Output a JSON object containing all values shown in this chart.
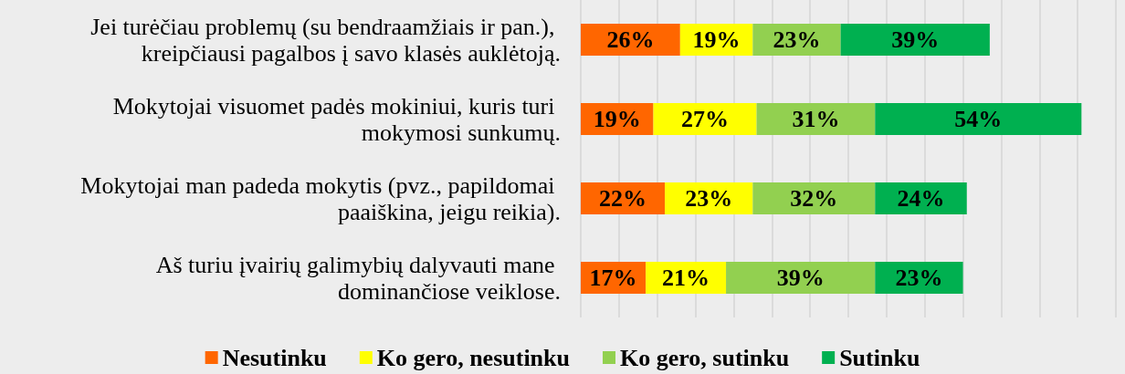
{
  "chart_data": {
    "type": "bar",
    "orientation": "horizontal",
    "stacked": true,
    "categories": [
      "Jei turėčiau problemų (su bendraamžiais ir pan.), kreipčiausi pagalbos į savo klasės auklėtoją.",
      "Mokytojai visuomet padės mokiniui, kuris turi mokymosi sunkumų.",
      "Mokytojai man padeda mokytis (pvz., papildomai paaiškina, jeigu reikia).",
      "Aš turiu įvairių galimybių dalyvauti mane dominančiose veiklose."
    ],
    "series": [
      {
        "name": "Nesutinku",
        "color": "#ff6600",
        "values": [
          26,
          19,
          22,
          17
        ],
        "value_labels": [
          "26%",
          "19%",
          "22%",
          "17%"
        ]
      },
      {
        "name": "Ko gero, nesutinku",
        "color": "#ffff00",
        "values": [
          19,
          27,
          23,
          21
        ],
        "value_labels": [
          "19%",
          "27%",
          "23%",
          "21%"
        ]
      },
      {
        "name": "Ko gero, sutinku",
        "color": "#92d050",
        "values": [
          23,
          31,
          32,
          39
        ],
        "value_labels": [
          "23%",
          "31%",
          "32%",
          "39%"
        ]
      },
      {
        "name": "Sutinku",
        "color": "#00b050",
        "values": [
          39,
          54,
          24,
          23
        ],
        "value_labels": [
          "39%",
          "54%",
          "24%",
          "23%"
        ]
      }
    ],
    "xlim": [
      0,
      140
    ],
    "xticks": [
      0,
      10,
      20,
      30,
      40,
      50,
      60,
      70,
      80,
      90,
      100,
      110,
      120,
      130,
      140
    ],
    "grid": "x",
    "tick_labels": "y",
    "legend": "bottom"
  }
}
